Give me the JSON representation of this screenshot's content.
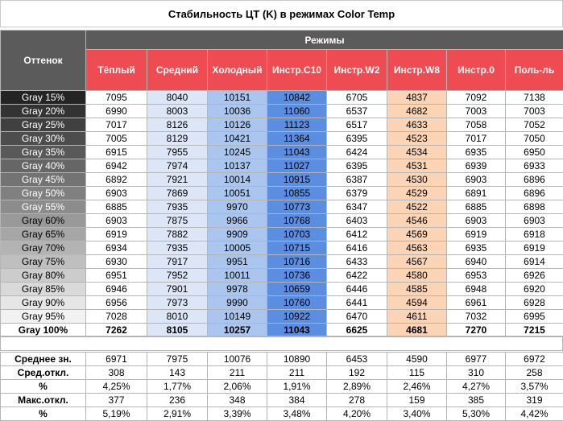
{
  "title": "Стабильность ЦТ (K) в режимах Color Temp",
  "header": {
    "row_label": "Оттенок",
    "group_label": "Режимы",
    "columns": [
      "Тёплый",
      "Средний",
      "Холодный",
      "Инстр.C10",
      "Инстр.W2",
      "Инстр.W8",
      "Инстр.0",
      "Поль-ль"
    ]
  },
  "chart_data": {
    "type": "table",
    "title": "Стабильность ЦТ (K) в режимах Color Temp",
    "columns": [
      "Тёплый",
      "Средний",
      "Холодный",
      "Инстр.C10",
      "Инстр.W2",
      "Инстр.W8",
      "Инстр.0",
      "Поль-ль"
    ],
    "rows": [
      {
        "label": "Gray 15%",
        "gray": "#242424",
        "values": [
          "7095",
          "8040",
          "10151",
          "10842",
          "6705",
          "4837",
          "7092",
          "7138"
        ]
      },
      {
        "label": "Gray 20%",
        "gray": "#333333",
        "values": [
          "6990",
          "8003",
          "10036",
          "11060",
          "6537",
          "4682",
          "7003",
          "7003"
        ]
      },
      {
        "label": "Gray 25%",
        "gray": "#404040",
        "values": [
          "7017",
          "8126",
          "10126",
          "11123",
          "6517",
          "4633",
          "7058",
          "7052"
        ]
      },
      {
        "label": "Gray 30%",
        "gray": "#4d4d4d",
        "values": [
          "7005",
          "8129",
          "10421",
          "11364",
          "6395",
          "4523",
          "7017",
          "7050"
        ]
      },
      {
        "label": "Gray 35%",
        "gray": "#595959",
        "values": [
          "6915",
          "7955",
          "10245",
          "11043",
          "6424",
          "4534",
          "6935",
          "6950"
        ]
      },
      {
        "label": "Gray 40%",
        "gray": "#666666",
        "values": [
          "6942",
          "7974",
          "10137",
          "11027",
          "6395",
          "4531",
          "6939",
          "6933"
        ]
      },
      {
        "label": "Gray 45%",
        "gray": "#737373",
        "values": [
          "6892",
          "7921",
          "10014",
          "10915",
          "6387",
          "4530",
          "6903",
          "6896"
        ]
      },
      {
        "label": "Gray 50%",
        "gray": "#808080",
        "values": [
          "6903",
          "7869",
          "10051",
          "10855",
          "6379",
          "4529",
          "6891",
          "6896"
        ]
      },
      {
        "label": "Gray 55%",
        "gray": "#8c8c8c",
        "values": [
          "6885",
          "7935",
          "9970",
          "10773",
          "6347",
          "4522",
          "6885",
          "6898"
        ]
      },
      {
        "label": "Gray 60%",
        "gray": "#999999",
        "values": [
          "6903",
          "7875",
          "9966",
          "10768",
          "6403",
          "4546",
          "6903",
          "6903"
        ]
      },
      {
        "label": "Gray 65%",
        "gray": "#a6a6a6",
        "values": [
          "6919",
          "7882",
          "9909",
          "10703",
          "6412",
          "4569",
          "6919",
          "6918"
        ]
      },
      {
        "label": "Gray 70%",
        "gray": "#b3b3b3",
        "values": [
          "6934",
          "7935",
          "10005",
          "10715",
          "6416",
          "4563",
          "6935",
          "6919"
        ]
      },
      {
        "label": "Gray 75%",
        "gray": "#bfbfbf",
        "values": [
          "6930",
          "7917",
          "9951",
          "10716",
          "6433",
          "4567",
          "6940",
          "6914"
        ]
      },
      {
        "label": "Gray 80%",
        "gray": "#cccccc",
        "values": [
          "6951",
          "7952",
          "10011",
          "10736",
          "6422",
          "4580",
          "6953",
          "6926"
        ]
      },
      {
        "label": "Gray 85%",
        "gray": "#d9d9d9",
        "values": [
          "6946",
          "7901",
          "9978",
          "10659",
          "6446",
          "4585",
          "6948",
          "6920"
        ]
      },
      {
        "label": "Gray 90%",
        "gray": "#e6e6e6",
        "values": [
          "6956",
          "7973",
          "9990",
          "10760",
          "6441",
          "4594",
          "6961",
          "6928"
        ]
      },
      {
        "label": "Gray 95%",
        "gray": "#f2f2f2",
        "values": [
          "7028",
          "8010",
          "10149",
          "10922",
          "6470",
          "4611",
          "7032",
          "6995"
        ]
      },
      {
        "label": "Gray 100%",
        "gray": "#ffffff",
        "values": [
          "7262",
          "8105",
          "10257",
          "11043",
          "6625",
          "4681",
          "7270",
          "7215"
        ],
        "bold": true
      }
    ],
    "stats": [
      {
        "label": "Среднее зн.",
        "values": [
          "6971",
          "7975",
          "10076",
          "10890",
          "6453",
          "4590",
          "6977",
          "6972"
        ]
      },
      {
        "label": "Сред.откл.",
        "values": [
          "308",
          "143",
          "211",
          "211",
          "192",
          "115",
          "310",
          "258"
        ]
      },
      {
        "label": "%",
        "values": [
          "4,25%",
          "1,77%",
          "2,06%",
          "1,91%",
          "2,89%",
          "2,46%",
          "4,27%",
          "3,57%"
        ]
      },
      {
        "label": "Макс.откл.",
        "values": [
          "377",
          "236",
          "348",
          "384",
          "278",
          "159",
          "385",
          "319"
        ]
      },
      {
        "label": "%",
        "values": [
          "5,19%",
          "2,91%",
          "3,39%",
          "3,48%",
          "4,20%",
          "3,40%",
          "5,30%",
          "4,42%"
        ]
      }
    ],
    "column_colors": [
      "#ffffff",
      "#dce6f7",
      "#aac6ee",
      "#5b8ee0",
      "#ffffff",
      "#fbd3b5",
      "#ffffff",
      "#ffffff"
    ]
  }
}
